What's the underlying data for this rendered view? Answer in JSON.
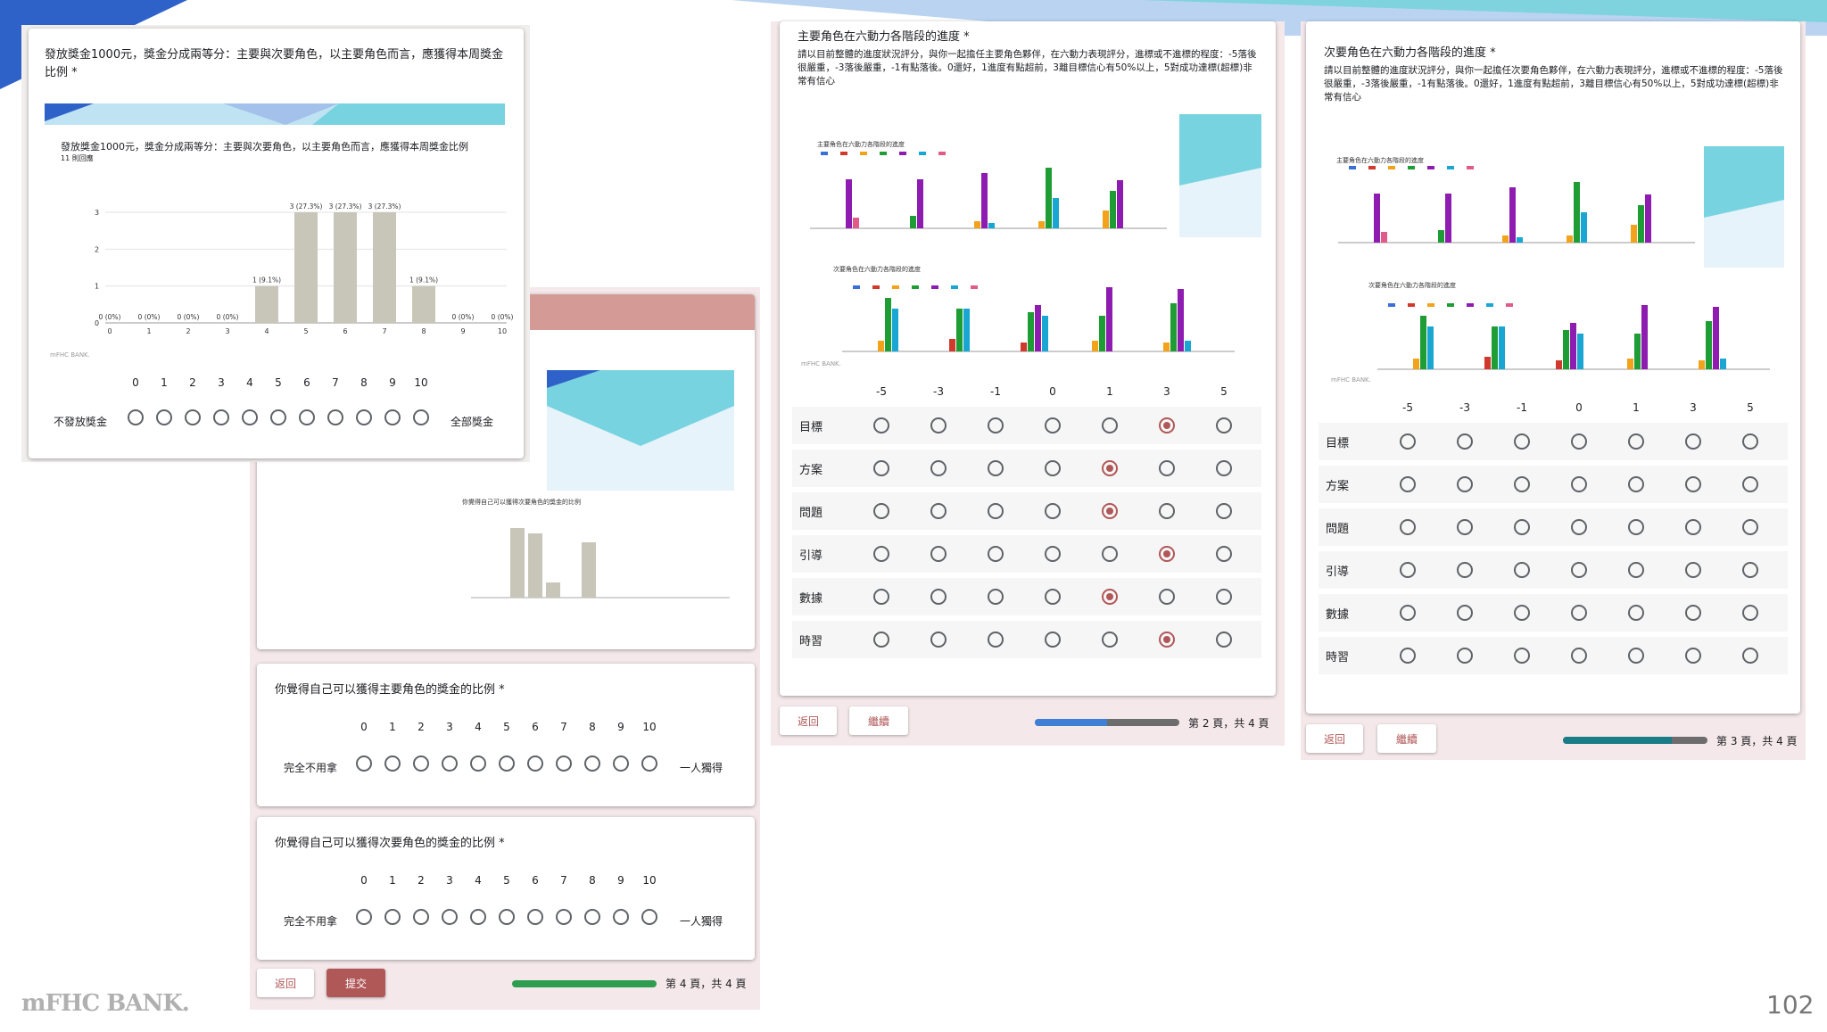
{
  "brand": "mFHC BANK.",
  "slide_number": "102",
  "q_bonus": {
    "title": "發放獎金1000元，獎金分成兩等分：主要與次要角色，以主要角色而言，應獲得本周獎金比例 *",
    "chart_title": "發放獎金1000元，獎金分成兩等分：主要與次要角色，以主要角色而言，應獲得本周獎金比例",
    "chart_sub": "11 則回應",
    "watermark": "mFHC BANK.",
    "scale": [
      "0",
      "1",
      "2",
      "3",
      "4",
      "5",
      "6",
      "7",
      "8",
      "9",
      "10"
    ],
    "left_label": "不發放獎金",
    "right_label": "全部獎金"
  },
  "chart_data": {
    "type": "bar",
    "categories": [
      "0",
      "1",
      "2",
      "3",
      "4",
      "5",
      "6",
      "7",
      "8",
      "9",
      "10"
    ],
    "values": [
      0,
      0,
      0,
      0,
      1,
      3,
      3,
      3,
      1,
      0,
      0
    ],
    "data_labels": [
      "0 (0%)",
      "0 (0%)",
      "0 (0%)",
      "0 (0%)",
      "1 (9.1%)",
      "3 (27.3%)",
      "3 (27.3%)",
      "3 (27.3%)",
      "1 (9.1%)",
      "0 (0%)",
      "0 (0%)"
    ],
    "yticks": [
      "0",
      "1",
      "2",
      "3"
    ],
    "ylim": [
      0,
      3
    ],
    "color": "#c8c6b8"
  },
  "q_main": {
    "title": "你覺得自己可以獲得主要角色的獎金的比例 *",
    "scale": [
      "0",
      "1",
      "2",
      "3",
      "4",
      "5",
      "6",
      "7",
      "8",
      "9",
      "10"
    ],
    "left_label": "完全不用拿",
    "right_label": "一人獨得"
  },
  "q_sub": {
    "title": "你覺得自己可以獲得次要角色的獎金的比例 *",
    "scale": [
      "0",
      "1",
      "2",
      "3",
      "4",
      "5",
      "6",
      "7",
      "8",
      "9",
      "10"
    ],
    "left_label": "完全不用拿",
    "right_label": "一人獨得"
  },
  "page4": {
    "back": "返回",
    "submit": "提交",
    "page": "第 4 頁，共 4 頁",
    "progress": 1.0
  },
  "q_grid2": {
    "title": "主要角色在六動力各階段的進度 *",
    "desc": "請以目前整體的進度狀況評分，與你一起擔任主要角色夥伴，在六動力表現評分，進標或不進標的程度：-5落後很嚴重，-3落後嚴重，-1有點落後。0還好，1進度有點超前，3離目標信心有50%以上，5對成功達標(超標)非常有信心",
    "mini1_title": "主要角色在六動力各階段的進度",
    "mini2_title": "次要角色在六動力各階段的進度",
    "watermark": "mFHC BANK.",
    "columns": [
      "-5",
      "-3",
      "-1",
      "0",
      "1",
      "3",
      "5"
    ],
    "rows": [
      {
        "label": "目標",
        "selected": 5
      },
      {
        "label": "方案",
        "selected": 4
      },
      {
        "label": "問題",
        "selected": 4
      },
      {
        "label": "引導",
        "selected": 5
      },
      {
        "label": "數據",
        "selected": 4
      },
      {
        "label": "時習",
        "selected": 5
      }
    ]
  },
  "page2": {
    "back": "返回",
    "next": "繼續",
    "page": "第 2 頁，共 4 頁",
    "progress": 0.5
  },
  "q_grid3": {
    "title": "次要角色在六動力各階段的進度 *",
    "desc": "請以目前整體的進度狀況評分，與你一起擔任次要角色夥伴，在六動力表現評分，進標或不進標的程度：-5落後很嚴重，-3落後嚴重，-1有點落後。0還好，1進度有點超前，3離目標信心有50%以上，5對成功達標(超標)非常有信心",
    "mini1_title": "主要角色在六動力各階段的進度",
    "mini2_title": "次要角色在六動力各階段的進度",
    "watermark": "mFHC BANK.",
    "columns": [
      "-5",
      "-3",
      "-1",
      "0",
      "1",
      "3",
      "5"
    ],
    "rows": [
      {
        "label": "目標",
        "selected": -1
      },
      {
        "label": "方案",
        "selected": -1
      },
      {
        "label": "問題",
        "selected": -1
      },
      {
        "label": "引導",
        "selected": -1
      },
      {
        "label": "數據",
        "selected": -1
      },
      {
        "label": "時習",
        "selected": -1
      }
    ]
  },
  "page3": {
    "back": "返回",
    "next": "繼續",
    "page": "第 3 頁，共 4 頁",
    "progress": 0.75
  },
  "colors": {
    "accent": "#b05757",
    "blue": "#3f7fd6",
    "teal": "#1a7c86",
    "green": "#2e9d4f",
    "header_pink": "#d49a96"
  },
  "mini_chart_series_colors": [
    "#3a6fd8",
    "#d0392b",
    "#f2a31b",
    "#1f9d35",
    "#8e1cb0",
    "#19a6d3",
    "#e05a8a"
  ]
}
